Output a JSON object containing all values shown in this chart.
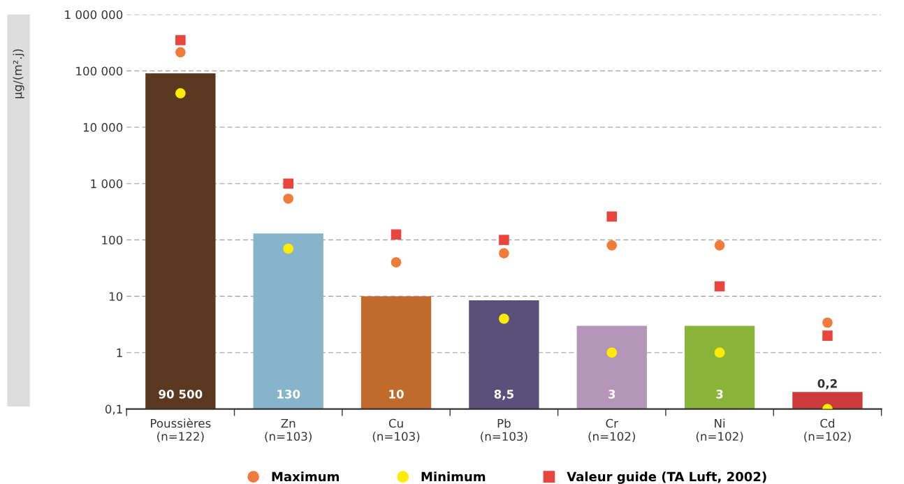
{
  "chart_data": {
    "type": "bar",
    "ylabel": "µg/(m².j)",
    "categories": [
      "Poussières\n(n=122)",
      "Zn\n(n=103)",
      "Cu\n(n=103)",
      "Pb\n(n=103)",
      "Cr\n(n=102)",
      "Ni\n(n=102)",
      "Cd\n(n=102)"
    ],
    "values": [
      90500,
      130,
      10,
      8.5,
      3,
      3,
      0.2
    ],
    "value_labels": [
      "90 500",
      "130",
      "10",
      "8,5",
      "3",
      "3",
      "0,2"
    ],
    "colors": [
      "#5a3920",
      "#85b4cb",
      "#c06a2c",
      "#5b4f7c",
      "#b595b8",
      "#8ab43a",
      "#cc3a3c"
    ],
    "series": [
      {
        "name": "Maximum",
        "type": "scatter",
        "marker": "circle",
        "color": "#f07b3a",
        "values": [
          214000,
          540,
          40,
          58,
          80,
          80,
          3.4
        ]
      },
      {
        "name": "Minimum",
        "type": "scatter",
        "marker": "circle",
        "color": "#ffec00",
        "values": [
          40000,
          70,
          null,
          4,
          1,
          1,
          0.1
        ]
      },
      {
        "name": "Valeur guide (TA Luft, 2002)",
        "type": "scatter",
        "marker": "square",
        "color": "#e8453c",
        "values": [
          350000,
          1000,
          125,
          100,
          260,
          15,
          2
        ]
      }
    ],
    "log": true,
    "ylim": [
      0.1,
      1000000
    ],
    "yticks": [
      {
        "value": 0.1,
        "label": "0,1"
      },
      1,
      10,
      100,
      {
        "value": 1000,
        "label": "1 000"
      },
      {
        "value": 10000,
        "label": "10 000"
      },
      {
        "value": 100000,
        "label": "100 000"
      },
      {
        "value": 1000000,
        "label": "1 000 000"
      }
    ],
    "grid": "y",
    "legend": "bottom"
  }
}
